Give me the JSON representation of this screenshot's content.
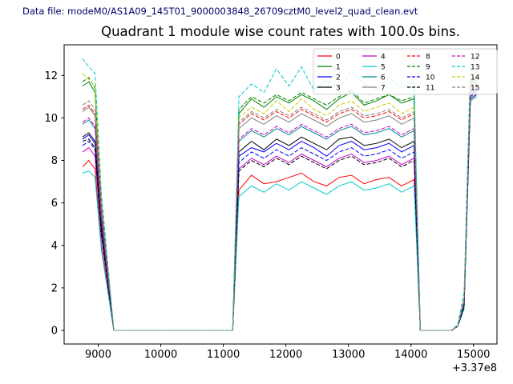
{
  "header": {
    "datafile": "Data file: modeM0/AS1A09_145T01_9000003848_26709cztM0_level2_quad_clean.evt"
  },
  "chart_data": {
    "type": "line",
    "title": "Quadrant 1 module wise count rates with 100.0s bins.",
    "xlabel": "",
    "ylabel": "",
    "x_offset_label": "+3.37e8",
    "xlim": [
      8455,
      15375
    ],
    "ylim": [
      -0.64,
      13.44
    ],
    "xticks": [
      9000,
      10000,
      11000,
      12000,
      13000,
      14000,
      15000
    ],
    "yticks": [
      0,
      2,
      4,
      6,
      8,
      10,
      12
    ],
    "grid": false,
    "legend": {
      "position": "upper right",
      "columns": 4,
      "rows": 4,
      "order": "column-major"
    },
    "x": [
      8750,
      8850,
      8950,
      9050,
      9250,
      11150,
      11250,
      11450,
      11650,
      11850,
      12050,
      12250,
      12450,
      12650,
      12850,
      13050,
      13250,
      13450,
      13650,
      13850,
      14050,
      14150,
      14650,
      14750,
      14850,
      14950,
      15050
    ],
    "series": [
      {
        "name": "0",
        "color": "#ff0000",
        "dash": "solid",
        "values": [
          7.7,
          8.0,
          7.6,
          4.0,
          0,
          0,
          6.6,
          7.3,
          6.9,
          7.0,
          7.2,
          7.4,
          7.0,
          6.8,
          7.2,
          7.3,
          6.9,
          7.1,
          7.2,
          6.8,
          7.1,
          0,
          0,
          0.2,
          1.2,
          10.8,
          11.0
        ]
      },
      {
        "name": "1",
        "color": "#008000",
        "dash": "solid",
        "values": [
          11.5,
          11.7,
          11.2,
          6.0,
          0,
          0,
          10.2,
          10.9,
          10.5,
          11.0,
          10.7,
          11.1,
          10.8,
          10.4,
          10.9,
          11.2,
          10.6,
          10.8,
          11.1,
          10.7,
          10.9,
          0,
          0,
          0.2,
          1.4,
          11.6,
          11.8
        ]
      },
      {
        "name": "2",
        "color": "#0000ff",
        "dash": "solid",
        "values": [
          9.0,
          9.2,
          8.8,
          4.8,
          0,
          0,
          8.2,
          8.6,
          8.4,
          8.8,
          8.5,
          8.9,
          8.6,
          8.2,
          8.7,
          8.9,
          8.5,
          8.6,
          8.8,
          8.4,
          8.7,
          0,
          0,
          0.2,
          1.2,
          11.0,
          11.2
        ]
      },
      {
        "name": "3",
        "color": "#000000",
        "dash": "solid",
        "values": [
          9.1,
          9.3,
          8.9,
          5.0,
          0,
          0,
          8.4,
          8.9,
          8.5,
          9.0,
          8.7,
          9.1,
          8.8,
          8.5,
          9.0,
          9.1,
          8.7,
          8.8,
          9.0,
          8.6,
          8.9,
          0,
          0,
          0.2,
          1.3,
          11.1,
          11.3
        ]
      },
      {
        "name": "4",
        "color": "#cc00cc",
        "dash": "solid",
        "values": [
          8.4,
          8.6,
          8.2,
          4.5,
          0,
          0,
          7.6,
          8.1,
          7.8,
          8.2,
          7.9,
          8.3,
          8.0,
          7.7,
          8.1,
          8.3,
          7.9,
          8.0,
          8.2,
          7.8,
          8.1,
          0,
          0,
          0.2,
          1.1,
          10.9,
          11.1
        ]
      },
      {
        "name": "5",
        "color": "#00cccc",
        "dash": "solid",
        "values": [
          7.4,
          7.5,
          7.2,
          3.8,
          0,
          0,
          6.3,
          6.8,
          6.5,
          6.9,
          6.6,
          7.0,
          6.7,
          6.4,
          6.8,
          7.0,
          6.6,
          6.7,
          6.9,
          6.5,
          6.8,
          0,
          0,
          0.2,
          1.0,
          10.8,
          11.0
        ]
      },
      {
        "name": "6",
        "color": "#008b8b",
        "dash": "solid",
        "values": [
          9.7,
          9.9,
          9.5,
          5.3,
          0,
          0,
          8.9,
          9.4,
          9.1,
          9.5,
          9.2,
          9.6,
          9.3,
          9.0,
          9.4,
          9.6,
          9.2,
          9.3,
          9.5,
          9.1,
          9.4,
          0,
          0,
          0.2,
          1.3,
          11.2,
          11.4
        ]
      },
      {
        "name": "7",
        "color": "#808080",
        "dash": "solid",
        "values": [
          10.3,
          10.5,
          10.1,
          5.6,
          0,
          0,
          9.5,
          10.0,
          9.7,
          10.1,
          9.8,
          10.2,
          9.9,
          9.6,
          10.0,
          10.2,
          9.8,
          9.9,
          10.1,
          9.7,
          10.0,
          0,
          0,
          0.2,
          1.4,
          11.3,
          11.5
        ]
      },
      {
        "name": "8",
        "color": "#ff0000",
        "dash": "dashed",
        "values": [
          10.4,
          10.6,
          10.2,
          5.7,
          0,
          0,
          9.7,
          10.2,
          9.9,
          10.3,
          10.0,
          10.4,
          10.1,
          9.8,
          10.2,
          10.4,
          10.0,
          10.1,
          10.3,
          9.9,
          10.2,
          0,
          0,
          0.2,
          1.4,
          11.4,
          11.6
        ]
      },
      {
        "name": "9",
        "color": "#008000",
        "dash": "dashed",
        "values": [
          11.7,
          11.9,
          11.4,
          6.1,
          0,
          0,
          10.4,
          11.0,
          10.7,
          11.1,
          10.8,
          11.2,
          10.9,
          10.6,
          11.0,
          11.3,
          10.7,
          10.9,
          11.1,
          10.8,
          11.0,
          0,
          0,
          0.2,
          1.5,
          11.7,
          11.9
        ]
      },
      {
        "name": "10",
        "color": "#0000ff",
        "dash": "dashed",
        "values": [
          8.7,
          8.9,
          8.5,
          4.7,
          0,
          0,
          7.9,
          8.4,
          8.1,
          8.5,
          8.2,
          8.6,
          8.3,
          8.0,
          8.4,
          8.6,
          8.2,
          8.3,
          8.5,
          8.1,
          8.4,
          0,
          0,
          0.2,
          1.2,
          10.9,
          11.1
        ]
      },
      {
        "name": "11",
        "color": "#000000",
        "dash": "dashed",
        "values": [
          8.9,
          9.0,
          8.6,
          4.5,
          0,
          0,
          7.5,
          8.0,
          7.7,
          8.1,
          7.8,
          8.2,
          7.9,
          7.6,
          8.0,
          8.2,
          7.8,
          7.9,
          8.1,
          7.7,
          8.0,
          0,
          0,
          0.2,
          1.1,
          10.9,
          11.1
        ]
      },
      {
        "name": "12",
        "color": "#cc00cc",
        "dash": "dashed",
        "values": [
          9.8,
          10.0,
          9.6,
          5.4,
          0,
          0,
          9.0,
          9.5,
          9.2,
          9.6,
          9.3,
          9.7,
          9.4,
          9.1,
          9.5,
          9.7,
          9.3,
          9.4,
          9.6,
          9.2,
          9.5,
          0,
          0,
          0.2,
          1.3,
          11.2,
          11.4
        ]
      },
      {
        "name": "13",
        "color": "#00cccc",
        "dash": "dashed",
        "values": [
          12.8,
          12.4,
          12.1,
          6.5,
          0,
          0,
          11.0,
          11.6,
          11.2,
          12.3,
          11.5,
          12.4,
          11.3,
          11.8,
          11.4,
          12.2,
          11.6,
          11.3,
          11.9,
          11.4,
          11.7,
          0,
          0,
          0.3,
          1.8,
          12.6,
          12.8
        ]
      },
      {
        "name": "14",
        "color": "#cccc00",
        "dash": "dashed",
        "values": [
          12.1,
          11.8,
          11.5,
          6.0,
          0,
          0,
          10.0,
          10.5,
          10.2,
          10.8,
          10.3,
          10.9,
          10.4,
          10.1,
          10.6,
          10.8,
          10.3,
          10.5,
          10.7,
          10.2,
          10.5,
          0,
          0,
          0.2,
          1.5,
          11.8,
          12.0
        ]
      },
      {
        "name": "15",
        "color": "#808080",
        "dash": "dashed",
        "values": [
          10.6,
          10.8,
          10.4,
          5.8,
          0,
          0,
          9.8,
          10.3,
          10.0,
          10.4,
          10.1,
          10.5,
          10.2,
          9.9,
          10.3,
          10.5,
          10.1,
          10.2,
          10.4,
          10.0,
          10.3,
          0,
          0,
          0.2,
          1.4,
          11.5,
          11.7
        ]
      }
    ]
  }
}
